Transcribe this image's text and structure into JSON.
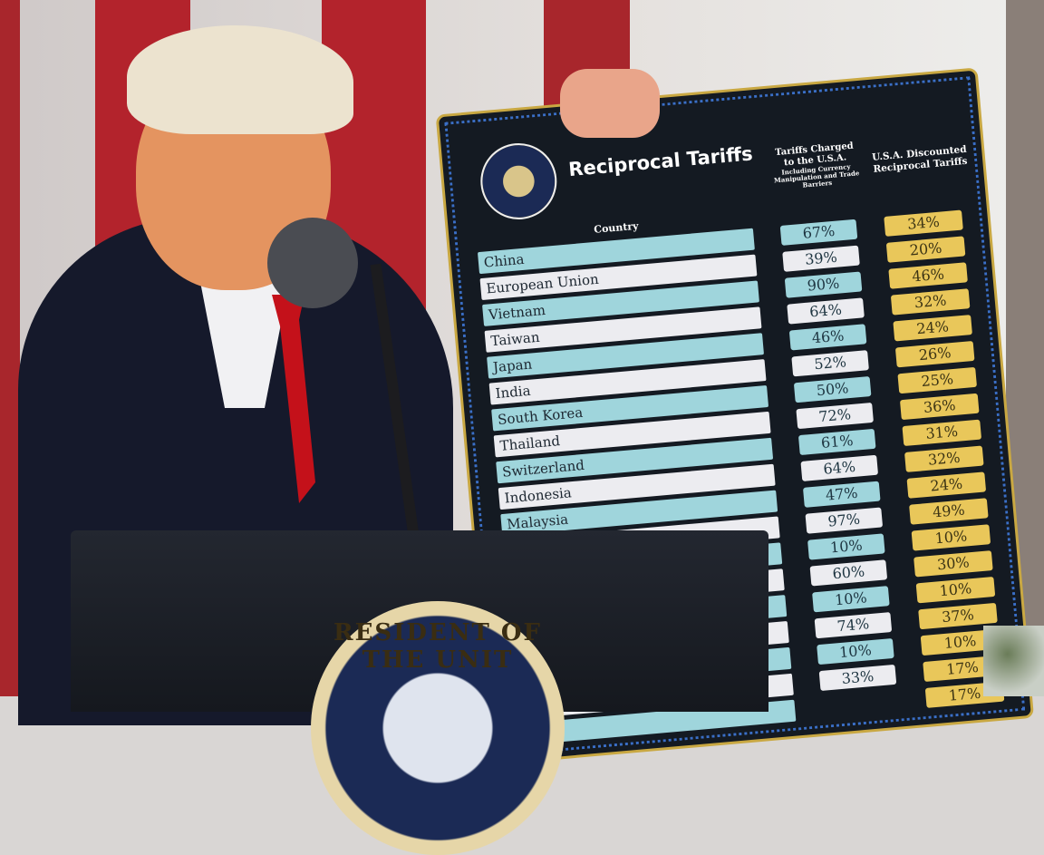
{
  "board": {
    "title": "Reciprocal Tariffs",
    "col_country": "Country",
    "col_charged": "Tariffs Charged to the U.S.A.",
    "col_charged_note": "Including Currency Manipulation and Trade Barriers",
    "col_discounted": "U.S.A. Discounted Reciprocal Tariffs",
    "rows": [
      {
        "country": "China",
        "charged": "67%",
        "discounted": "34%"
      },
      {
        "country": "European Union",
        "charged": "39%",
        "discounted": "20%"
      },
      {
        "country": "Vietnam",
        "charged": "90%",
        "discounted": "46%"
      },
      {
        "country": "Taiwan",
        "charged": "64%",
        "discounted": "32%"
      },
      {
        "country": "Japan",
        "charged": "46%",
        "discounted": "24%"
      },
      {
        "country": "India",
        "charged": "52%",
        "discounted": "26%"
      },
      {
        "country": "South Korea",
        "charged": "50%",
        "discounted": "25%"
      },
      {
        "country": "Thailand",
        "charged": "72%",
        "discounted": "36%"
      },
      {
        "country": "Switzerland",
        "charged": "61%",
        "discounted": "31%"
      },
      {
        "country": "Indonesia",
        "charged": "64%",
        "discounted": "32%"
      },
      {
        "country": "Malaysia",
        "charged": "47%",
        "discounted": "24%"
      },
      {
        "country": "",
        "charged": "97%",
        "discounted": "49%"
      },
      {
        "country": "",
        "charged": "10%",
        "discounted": "10%"
      },
      {
        "country": "",
        "charged": "60%",
        "discounted": "30%"
      },
      {
        "country": "",
        "charged": "10%",
        "discounted": "10%"
      },
      {
        "country": "",
        "charged": "74%",
        "discounted": "37%"
      },
      {
        "country": "",
        "charged": "10%",
        "discounted": "10%"
      },
      {
        "country": "",
        "charged": "33%",
        "discounted": "17%"
      },
      {
        "country": "",
        "charged": "",
        "discounted": "17%"
      }
    ]
  },
  "podium": {
    "seal_text": "RESIDENT OF THE UNIT"
  },
  "colors": {
    "flag_red": "#b3232c",
    "board": "#141a22",
    "teal": "#9fd5dc",
    "gold": "#e9c75a"
  }
}
